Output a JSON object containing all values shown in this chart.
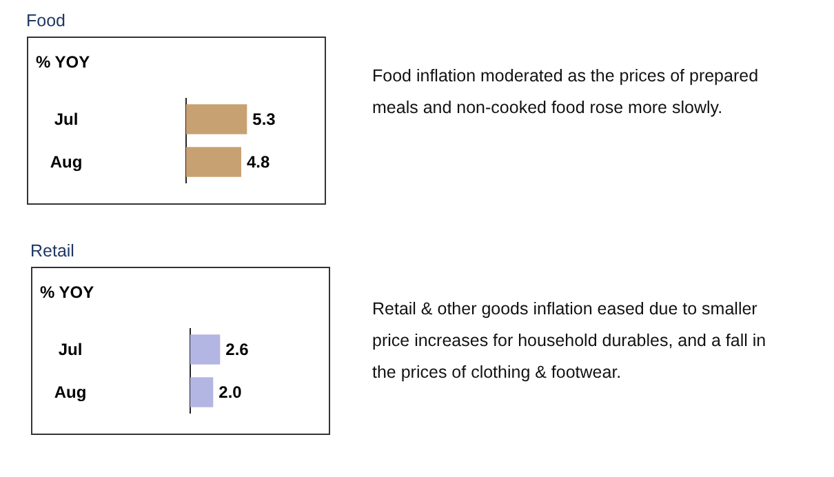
{
  "chart_data": [
    {
      "type": "bar",
      "orientation": "horizontal",
      "title": "Food",
      "ylabel": "% YOY",
      "categories": [
        "Jul",
        "Aug"
      ],
      "values": [
        5.3,
        4.8
      ],
      "color": "#c8a172",
      "xlim": [
        0,
        12
      ],
      "tick_labels": "y",
      "data_labels": true,
      "annotations": [
        "Food inflation moderated as the prices of prepared meals and non-cooked food rose more slowly."
      ]
    },
    {
      "type": "bar",
      "orientation": "horizontal",
      "title": "Retail",
      "ylabel": "% YOY",
      "categories": [
        "Jul",
        "Aug"
      ],
      "values": [
        2.6,
        2.0
      ],
      "value_labels": [
        "2.6",
        "2.0"
      ],
      "color": "#b3b6e2",
      "xlim": [
        0,
        12
      ],
      "tick_labels": "y",
      "annotations": [
        "Retail & other goods inflation eased due to smaller price increases for household durables, and a fall in the prices of clothing & footwear."
      ]
    }
  ]
}
